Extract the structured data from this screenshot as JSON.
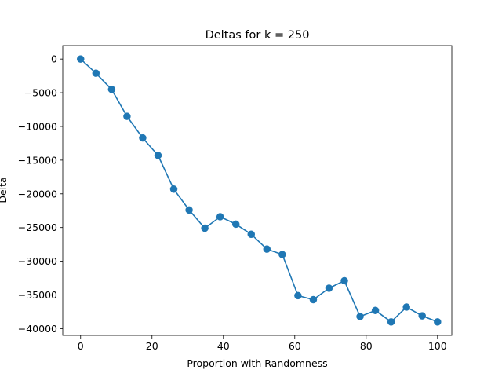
{
  "chart_data": {
    "type": "line",
    "title": "Deltas for k = 250",
    "xlabel": "Proportion with Randomness",
    "ylabel": "Delta",
    "xlim": [
      -5,
      104
    ],
    "ylim": [
      -41000,
      2000
    ],
    "xticks": [
      0,
      20,
      40,
      60,
      80,
      100
    ],
    "xtick_labels": [
      "0",
      "20",
      "40",
      "60",
      "80",
      "100"
    ],
    "yticks": [
      0,
      -5000,
      -10000,
      -15000,
      -20000,
      -25000,
      -30000,
      -35000,
      -40000
    ],
    "ytick_labels": [
      "0",
      "−5000",
      "−10000",
      "−15000",
      "−20000",
      "−25000",
      "−30000",
      "−35000",
      "−40000"
    ],
    "grid": false,
    "series": [
      {
        "color": "#1f77b4",
        "marker": "circle",
        "x": [
          0,
          4.3,
          8.7,
          13.0,
          17.4,
          21.7,
          26.1,
          30.4,
          34.8,
          39.1,
          43.5,
          47.8,
          52.2,
          56.5,
          60.9,
          65.2,
          69.6,
          73.9,
          78.3,
          82.6,
          87.0,
          91.3,
          95.7,
          100
        ],
        "y": [
          0,
          -2100,
          -4500,
          -8500,
          -11700,
          -14300,
          -19300,
          -22400,
          -25100,
          -23400,
          -24500,
          -26000,
          -28200,
          -29000,
          -35100,
          -35700,
          -34000,
          -32900,
          -38200,
          -37300,
          -39000,
          -36800,
          -38100,
          -39000
        ]
      }
    ]
  }
}
